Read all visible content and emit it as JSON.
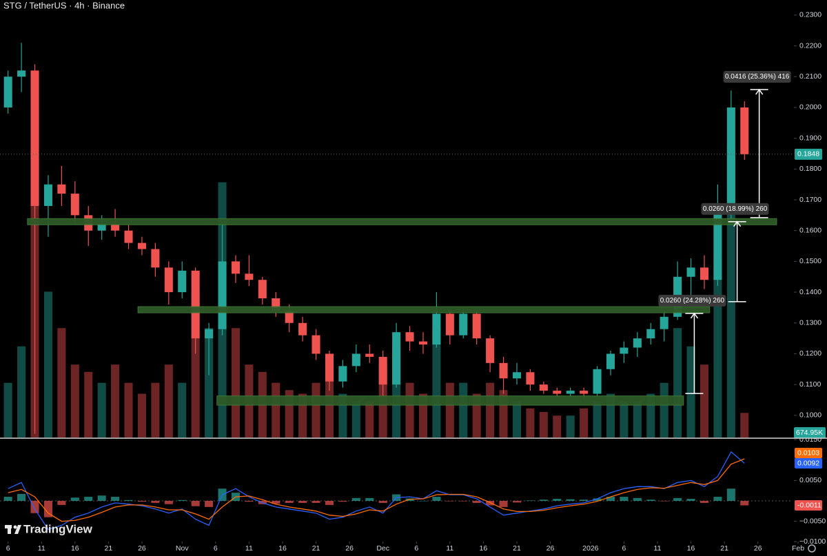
{
  "chart_data": {
    "type": "candlestick",
    "title": "STG / TetherUS · 4h · Binance",
    "brand": "TradingView",
    "up_color": "#26a69a",
    "down_color": "#ef5350",
    "open": [
      0.2,
      0.21,
      0.212,
      0.168,
      0.175,
      0.172,
      0.165,
      0.16,
      0.162,
      0.16,
      0.156,
      0.154,
      0.148,
      0.14,
      0.147,
      0.125,
      0.128,
      0.15,
      0.146,
      0.144,
      0.138,
      0.134,
      0.13,
      0.126,
      0.12,
      0.111,
      0.116,
      0.12,
      0.119,
      0.11,
      0.127,
      0.124,
      0.123,
      0.133,
      0.126,
      0.133,
      0.125,
      0.117,
      0.112,
      0.114,
      0.11,
      0.108,
      0.107,
      0.108,
      0.107,
      0.115,
      0.12,
      0.122,
      0.125,
      0.128,
      0.132,
      0.145,
      0.148,
      0.144,
      0.168,
      0.2
    ],
    "high": [
      0.212,
      0.221,
      0.214,
      0.178,
      0.181,
      0.176,
      0.168,
      0.165,
      0.167,
      0.162,
      0.158,
      0.156,
      0.15,
      0.15,
      0.148,
      0.13,
      0.162,
      0.152,
      0.152,
      0.145,
      0.14,
      0.136,
      0.132,
      0.128,
      0.121,
      0.118,
      0.123,
      0.123,
      0.121,
      0.13,
      0.129,
      0.127,
      0.14,
      0.134,
      0.135,
      0.134,
      0.126,
      0.119,
      0.117,
      0.115,
      0.111,
      0.109,
      0.109,
      0.109,
      0.116,
      0.121,
      0.124,
      0.127,
      0.13,
      0.134,
      0.15,
      0.151,
      0.152,
      0.175,
      0.2055,
      0.202
    ],
    "low": [
      0.198,
      0.205,
      0.094,
      0.158,
      0.168,
      0.162,
      0.155,
      0.157,
      0.158,
      0.154,
      0.152,
      0.145,
      0.136,
      0.138,
      0.12,
      0.113,
      0.126,
      0.143,
      0.142,
      0.136,
      0.132,
      0.127,
      0.124,
      0.118,
      0.108,
      0.109,
      0.114,
      0.117,
      0.106,
      0.109,
      0.121,
      0.12,
      0.122,
      0.123,
      0.125,
      0.123,
      0.114,
      0.107,
      0.11,
      0.108,
      0.107,
      0.106,
      0.106,
      0.105,
      0.106,
      0.113,
      0.117,
      0.119,
      0.123,
      0.124,
      0.131,
      0.138,
      0.141,
      0.142,
      0.163,
      0.183
    ],
    "close": [
      0.21,
      0.212,
      0.168,
      0.175,
      0.172,
      0.165,
      0.16,
      0.162,
      0.16,
      0.156,
      0.154,
      0.148,
      0.14,
      0.147,
      0.125,
      0.128,
      0.15,
      0.146,
      0.144,
      0.138,
      0.134,
      0.13,
      0.126,
      0.12,
      0.111,
      0.116,
      0.12,
      0.119,
      0.11,
      0.127,
      0.124,
      0.123,
      0.133,
      0.126,
      0.133,
      0.125,
      0.117,
      0.112,
      0.114,
      0.11,
      0.108,
      0.107,
      0.108,
      0.107,
      0.115,
      0.12,
      0.122,
      0.125,
      0.128,
      0.132,
      0.145,
      0.148,
      0.144,
      0.168,
      0.2,
      0.1848
    ],
    "xlim": [
      -0.6,
      59
    ],
    "xticks": [
      {
        "value": 0,
        "label": "6"
      },
      {
        "value": 2.5,
        "label": "11"
      },
      {
        "value": 5,
        "label": "16"
      },
      {
        "value": 7.5,
        "label": "21"
      },
      {
        "value": 10,
        "label": "26"
      },
      {
        "value": 13,
        "label": "Nov"
      },
      {
        "value": 15.5,
        "label": "6"
      },
      {
        "value": 18,
        "label": "11"
      },
      {
        "value": 20.5,
        "label": "16"
      },
      {
        "value": 23,
        "label": "21"
      },
      {
        "value": 25.5,
        "label": "26"
      },
      {
        "value": 28,
        "label": "Dec"
      },
      {
        "value": 30.5,
        "label": "6"
      },
      {
        "value": 33,
        "label": "11"
      },
      {
        "value": 35.5,
        "label": "16"
      },
      {
        "value": 38,
        "label": "21"
      },
      {
        "value": 40.5,
        "label": "26"
      },
      {
        "value": 43.5,
        "label": "2026"
      },
      {
        "value": 46,
        "label": "6"
      },
      {
        "value": 48.5,
        "label": "11"
      },
      {
        "value": 51,
        "label": "16"
      },
      {
        "value": 53.5,
        "label": "21"
      },
      {
        "value": 56,
        "label": "26"
      },
      {
        "value": 59,
        "label": "Feb"
      }
    ],
    "ylim": [
      0.0928,
      0.2349
    ],
    "yticks": [
      {
        "value": 0.23,
        "label": "0.2300"
      },
      {
        "value": 0.22,
        "label": "0.2200"
      },
      {
        "value": 0.21,
        "label": "0.2100"
      },
      {
        "value": 0.2,
        "label": "0.2000"
      },
      {
        "value": 0.19,
        "label": "0.1900"
      },
      {
        "value": 0.18,
        "label": "0.1800"
      },
      {
        "value": 0.17,
        "label": "0.1700"
      },
      {
        "value": 0.16,
        "label": "0.1600"
      },
      {
        "value": 0.15,
        "label": "0.1500"
      },
      {
        "value": 0.14,
        "label": "0.1400"
      },
      {
        "value": 0.13,
        "label": "0.1300"
      },
      {
        "value": 0.12,
        "label": "0.1200"
      },
      {
        "value": 0.11,
        "label": "0.1100"
      },
      {
        "value": 0.1,
        "label": "0.1000"
      }
    ],
    "volume": {
      "values": [
        1500000,
        2500000,
        9000000,
        4000000,
        3000000,
        2000000,
        1800000,
        1500000,
        2000000,
        1500000,
        1200000,
        1500000,
        2000000,
        1500000,
        4000000,
        3000000,
        7000000,
        3000000,
        2000000,
        1800000,
        1500000,
        1300000,
        1200000,
        1500000,
        2000000,
        1200000,
        1000000,
        1000000,
        2000000,
        2500000,
        1500000,
        1200000,
        3000000,
        1500000,
        1500000,
        1200000,
        1500000,
        1300000,
        1000000,
        800000,
        700000,
        600000,
        600000,
        800000,
        1000000,
        1200000,
        1000000,
        1000000,
        1200000,
        1500000,
        3000000,
        2500000,
        2000000,
        5000000,
        8000000,
        674950
      ],
      "ylim": [
        0,
        12000000
      ],
      "last_label": "674.95K"
    },
    "macd": {
      "ylim": [
        -0.0098,
        0.0152
      ],
      "yticks": [
        {
          "value": 0.015,
          "label": "0.0150"
        },
        {
          "value": 0.005,
          "label": "0.0050"
        },
        {
          "value": -0.005,
          "label": "−0.0050"
        },
        {
          "value": -0.01,
          "label": "−0.0100"
        }
      ],
      "macd_line": {
        "color": "#2962ff",
        "values": [
          0.003,
          0.0045,
          -0.002,
          -0.007,
          -0.006,
          -0.004,
          -0.003,
          -0.0015,
          -0.0005,
          -0.0008,
          -0.0012,
          -0.002,
          -0.003,
          -0.002,
          -0.0045,
          -0.006,
          0.0015,
          0.003,
          0.001,
          -0.0005,
          -0.0015,
          -0.002,
          -0.0025,
          -0.003,
          -0.0045,
          -0.004,
          -0.0025,
          -0.0015,
          -0.003,
          0.0008,
          0.001,
          0.0005,
          0.0025,
          0.0015,
          0.0015,
          0.0005,
          -0.0015,
          -0.0035,
          -0.003,
          -0.0025,
          -0.002,
          -0.0012,
          -0.0008,
          -0.0005,
          0.0005,
          0.002,
          0.003,
          0.0035,
          0.0035,
          0.003,
          0.0045,
          0.005,
          0.0035,
          0.006,
          0.012,
          0.0092
        ]
      },
      "signal_line": {
        "color": "#ff6d00",
        "values": [
          0.002,
          0.0028,
          0.001,
          -0.003,
          -0.005,
          -0.0048,
          -0.004,
          -0.0028,
          -0.0015,
          -0.001,
          -0.001,
          -0.0015,
          -0.0022,
          -0.0022,
          -0.0032,
          -0.0045,
          -0.0015,
          0.001,
          0.0012,
          0.0003,
          -0.0008,
          -0.0015,
          -0.002,
          -0.0025,
          -0.0035,
          -0.0038,
          -0.0032,
          -0.0022,
          -0.0025,
          -0.0008,
          0.0004,
          0.0005,
          0.0015,
          0.0016,
          0.0016,
          0.001,
          -0.0004,
          -0.002,
          -0.0026,
          -0.0026,
          -0.0023,
          -0.0017,
          -0.0012,
          -0.0008,
          -0.0001,
          0.001,
          0.002,
          0.0028,
          0.0032,
          0.0031,
          0.0038,
          0.0045,
          0.004,
          0.005,
          0.009,
          0.0103
        ]
      },
      "histogram": {
        "up_color": "#26a69a",
        "down_color": "#ef5350",
        "values": [
          0.001,
          0.0017,
          -0.003,
          -0.004,
          -0.001,
          0.0008,
          0.001,
          0.0013,
          0.001,
          0.0002,
          -0.0002,
          -0.0005,
          -0.0008,
          0.0002,
          -0.0013,
          -0.0015,
          0.003,
          0.002,
          -0.0002,
          -0.0008,
          -0.0007,
          -0.0005,
          -0.0005,
          -0.0005,
          -0.001,
          -0.0002,
          0.0007,
          0.0007,
          -0.0005,
          0.0016,
          0.0006,
          0.0,
          0.001,
          -0.0001,
          -0.0001,
          -0.0005,
          -0.0011,
          -0.0015,
          -0.0004,
          0.0001,
          0.0003,
          0.0005,
          0.0004,
          0.0003,
          0.0006,
          0.001,
          0.001,
          0.0007,
          0.0003,
          -0.0001,
          0.0007,
          0.0005,
          -0.0005,
          0.001,
          0.003,
          -0.0011
        ]
      }
    },
    "zone_color": "#2e5a28",
    "zones": [
      {
        "x": [
          1.45,
          57.4
        ],
        "y": [
          0.1619,
          0.1639
        ]
      },
      {
        "x": [
          9.7,
          52.4
        ],
        "y": [
          0.1333,
          0.1353
        ]
      },
      {
        "x": [
          15.6,
          50.45
        ],
        "y": [
          0.1033,
          0.1063
        ]
      }
    ],
    "measures": [
      {
        "x": 56.1,
        "from": 0.1642,
        "to": 0.2058,
        "label": "0.0416 (25.36%) 416"
      },
      {
        "x": 54.45,
        "from": 0.1369,
        "to": 0.1629,
        "label": "0.0260 (18.99%) 260"
      },
      {
        "x": 51.25,
        "from": 0.1071,
        "to": 0.1331,
        "label": "0.0260 (24.28%) 260"
      }
    ]
  }
}
